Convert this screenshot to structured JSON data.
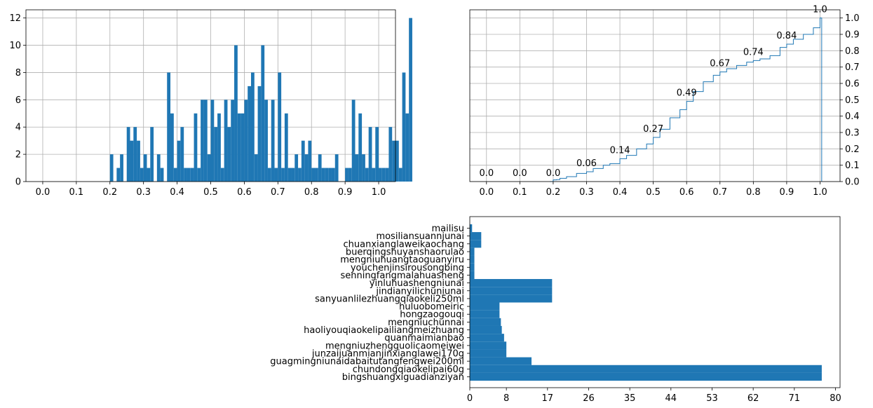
{
  "chart_data": [
    {
      "type": "bar",
      "subtype": "histogram",
      "bin_width": 0.01,
      "bin_starts_from": 0.2,
      "values": [
        2,
        0,
        1,
        2,
        0,
        4,
        3,
        4,
        3,
        1,
        2,
        1,
        4,
        0,
        2,
        1,
        0,
        8,
        5,
        1,
        3,
        4,
        1,
        1,
        1,
        5,
        1,
        6,
        6,
        2,
        6,
        4,
        5,
        1,
        6,
        4,
        6,
        10,
        5,
        5,
        6,
        7,
        8,
        2,
        7,
        10,
        6,
        1,
        6,
        1,
        8,
        1,
        5,
        1,
        1,
        2,
        1,
        3,
        2,
        3,
        1,
        1,
        2,
        1,
        1,
        1,
        1,
        2,
        0,
        0,
        1,
        1,
        6,
        2,
        5,
        2,
        1,
        4,
        1,
        4,
        1,
        1,
        1,
        4,
        3,
        3,
        1,
        8,
        5,
        12
      ],
      "color": "#1f77b4",
      "xlim": [
        -0.05,
        1.05
      ],
      "ylim": [
        0,
        12.6
      ],
      "xticks": [
        "0.0",
        "0.1",
        "0.2",
        "0.3",
        "0.4",
        "0.5",
        "0.6",
        "0.7",
        "0.8",
        "0.9",
        "1.0"
      ],
      "yticks": [
        "0",
        "2",
        "4",
        "6",
        "8",
        "10",
        "12"
      ],
      "grid": true
    },
    {
      "type": "line",
      "subtype": "cumulative-step",
      "color": "#1f77b4",
      "x": [
        0.19,
        0.2,
        0.21,
        0.22,
        0.24,
        0.27,
        0.3,
        0.32,
        0.35,
        0.37,
        0.4,
        0.42,
        0.45,
        0.48,
        0.5,
        0.52,
        0.55,
        0.58,
        0.6,
        0.62,
        0.65,
        0.68,
        0.7,
        0.72,
        0.75,
        0.78,
        0.8,
        0.82,
        0.85,
        0.88,
        0.9,
        0.92,
        0.95,
        0.98,
        1.0,
        1.005
      ],
      "y": [
        0.0,
        0.01,
        0.012,
        0.02,
        0.03,
        0.05,
        0.06,
        0.08,
        0.1,
        0.11,
        0.14,
        0.16,
        0.2,
        0.23,
        0.27,
        0.32,
        0.39,
        0.44,
        0.49,
        0.55,
        0.61,
        0.65,
        0.67,
        0.69,
        0.71,
        0.73,
        0.74,
        0.75,
        0.77,
        0.82,
        0.84,
        0.87,
        0.9,
        0.94,
        1.0,
        0.0
      ],
      "labels": [
        {
          "x": 0.0,
          "y": 0.0,
          "text": "0.0"
        },
        {
          "x": 0.1,
          "y": 0.0,
          "text": "0.0"
        },
        {
          "x": 0.2,
          "y": 0.0,
          "text": "0.0"
        },
        {
          "x": 0.3,
          "y": 0.06,
          "text": "0.06"
        },
        {
          "x": 0.4,
          "y": 0.14,
          "text": "0.14"
        },
        {
          "x": 0.5,
          "y": 0.27,
          "text": "0.27"
        },
        {
          "x": 0.6,
          "y": 0.49,
          "text": "0.49"
        },
        {
          "x": 0.7,
          "y": 0.67,
          "text": "0.67"
        },
        {
          "x": 0.8,
          "y": 0.74,
          "text": "0.74"
        },
        {
          "x": 0.9,
          "y": 0.84,
          "text": "0.84"
        },
        {
          "x": 1.0,
          "y": 1.0,
          "text": "1.0"
        }
      ],
      "xlim": [
        -0.05,
        1.06
      ],
      "ylim": [
        0,
        1.05
      ],
      "xticks": [
        "0.0",
        "0.1",
        "0.2",
        "0.3",
        "0.4",
        "0.5",
        "0.6",
        "0.7",
        "0.8",
        "0.9",
        "1.0"
      ],
      "yticks": [
        "0.0",
        "0.1",
        "0.2",
        "0.3",
        "0.4",
        "0.5",
        "0.6",
        "0.7",
        "0.8",
        "0.9",
        "1.0"
      ],
      "y_axis_side": "right",
      "grid": true
    },
    {
      "type": "bar",
      "orientation": "horizontal",
      "color": "#1f77b4",
      "categories": [
        "bingshuangxiguadianziyan",
        "chundongqiaokelipai60g",
        "guagmingniunaidabaitutangfengwei200ml",
        "junzaijuanmianjinxianglawei170g",
        "mengniuzhengguolicaomeiwei",
        "quanmaimianbao",
        "haoliyouqiaokelipailiangmeizhuang",
        "mengniuchunnai",
        "hongzaogouqi",
        "huluobomeiric",
        "sanyuanlilezhuangqiaokeli250ml",
        "jindianyilichuniunai",
        "yinluhuashengniunai",
        "senningfangmalahuasheng",
        "youchenjinsirousongbing",
        "mengniuhuangtaoguanyiru",
        "buerqingshuyanshaorulao",
        "chuanxianglaweikaochang",
        "mosiliansuannjunai",
        "mailisu"
      ],
      "values": [
        77,
        77,
        13.5,
        8,
        8,
        7.5,
        7,
        6.8,
        6.5,
        6.5,
        18,
        18,
        18,
        1,
        1,
        1,
        1,
        2.5,
        2.5,
        0.5
      ],
      "xlim": [
        0,
        81
      ],
      "xticks": [
        "0",
        "8",
        "17",
        "26",
        "35",
        "44",
        "53",
        "62",
        "71",
        "80"
      ],
      "grid": false
    }
  ]
}
